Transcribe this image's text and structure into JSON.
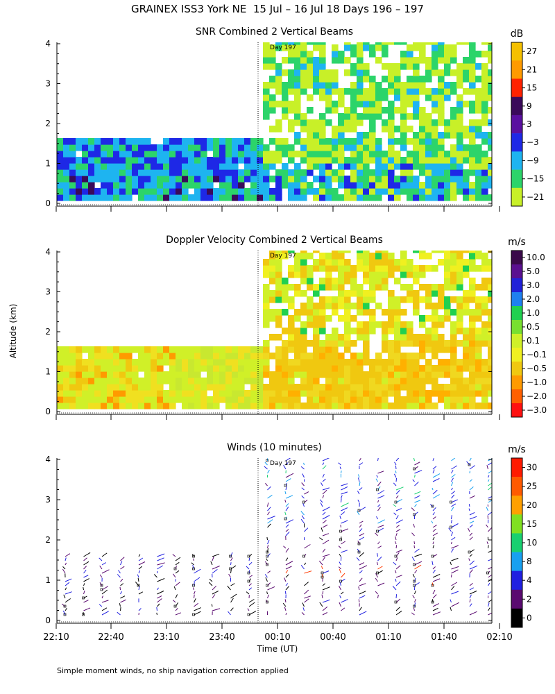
{
  "title": "GRAINEX ISS3 York NE  15 Jul – 16 Jul 18 Days 196 – 197",
  "ylabel": "Altitude (km)",
  "xlabel": "Time (UT)",
  "footnote": "Simple moment winds, no ship navigation correction applied",
  "day_marker": "Day 197",
  "chart_data": [
    {
      "type": "heatmap",
      "title": "SNR Combined 2 Vertical Beams",
      "unit": "dB",
      "y_ticks": [
        "0",
        "1",
        "2",
        "3",
        "4"
      ],
      "ylim": [
        0,
        4
      ],
      "colorbar_labels": [
        "27",
        "21",
        "15",
        "9",
        "3",
        "−3",
        "−9",
        "−15",
        "−21"
      ],
      "colorbar_colors": [
        "#f5c000",
        "#ff9a00",
        "#ff2200",
        "#3a0a5a",
        "#5a10a0",
        "#1e28e6",
        "#1eb4f0",
        "#2cd46a",
        "#c8f028"
      ],
      "coverage_low_top_km": 1.4,
      "coverage_high_top_km": 3.95,
      "x_split": "00:00"
    },
    {
      "type": "heatmap",
      "title": "Doppler Velocity Combined 2 Vertical Beams",
      "unit": "m/s",
      "y_ticks": [
        "0",
        "1",
        "2",
        "3",
        "4"
      ],
      "ylim": [
        0,
        4
      ],
      "colorbar_labels": [
        "10.0",
        "5.0",
        "3.0",
        "2.0",
        "1.0",
        "0.5",
        "0.1",
        "−0.1",
        "−0.5",
        "−1.0",
        "−2.0",
        "−3.0"
      ],
      "colorbar_colors": [
        "#3a0a4a",
        "#5a1090",
        "#2020d8",
        "#1e80f0",
        "#20d050",
        "#78e030",
        "#d0f028",
        "#f0f020",
        "#f0c810",
        "#ff9a00",
        "#ff6000",
        "#ff1010"
      ],
      "coverage_low_top_km": 1.4,
      "coverage_high_top_km": 3.95,
      "x_split": "00:00"
    },
    {
      "type": "scatter",
      "title": "Winds (10 minutes)",
      "unit": "m/s",
      "y_ticks": [
        "0",
        "1",
        "2",
        "3",
        "4"
      ],
      "ylim": [
        0,
        4
      ],
      "colorbar_labels": [
        "30",
        "25",
        "20",
        "15",
        "10",
        "8",
        "4",
        "2",
        "0"
      ],
      "colorbar_colors": [
        "#ff1a00",
        "#ff5a00",
        "#ffa000",
        "#80e020",
        "#18d070",
        "#18a0f0",
        "#2020e0",
        "#5a0a70",
        "#000000"
      ],
      "x_tick_labels": [
        "22:10",
        "22:40",
        "23:10",
        "23:40",
        "00:10",
        "00:40",
        "01:10",
        "01:40",
        "02:10"
      ],
      "low_column_top_km": 1.6,
      "high_column_top_km": 4.0,
      "x_split": "00:00"
    }
  ]
}
